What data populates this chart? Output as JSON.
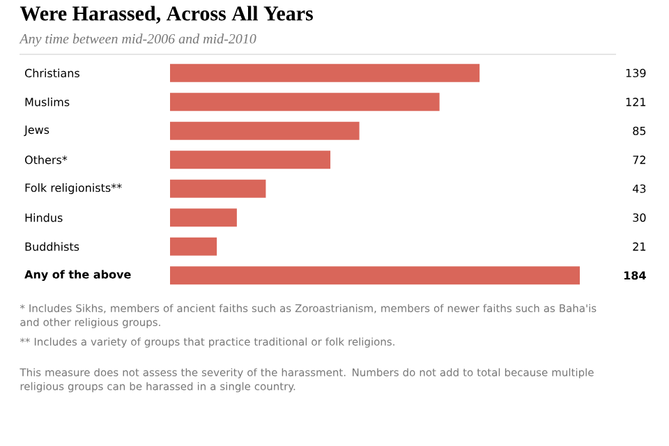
{
  "chart_data": {
    "type": "bar",
    "orientation": "horizontal",
    "title": "Were Harassed, Across All Years",
    "subtitle": "Any time between mid-2006 and mid-2010",
    "categories": [
      "Christians",
      "Muslims",
      "Jews",
      "Others*",
      "Folk religionists**",
      "Hindus",
      "Buddhists",
      "**Any of the above**"
    ],
    "values": [
      139,
      121,
      85,
      72,
      43,
      30,
      21,
      184
    ],
    "color": "#d9665a",
    "data_labels": true,
    "annotations": [
      "* Includes Sikhs, members of ancient faiths such as Zoroastrianism, members of newer faiths such as Baha'is and other religious groups.",
      "** Includes a variety of groups that practice traditional or folk religions.",
      "This measure does not assess the severity of the harassment. Numbers do not add to total because multiple religious groups can be harassed in a single country."
    ]
  }
}
